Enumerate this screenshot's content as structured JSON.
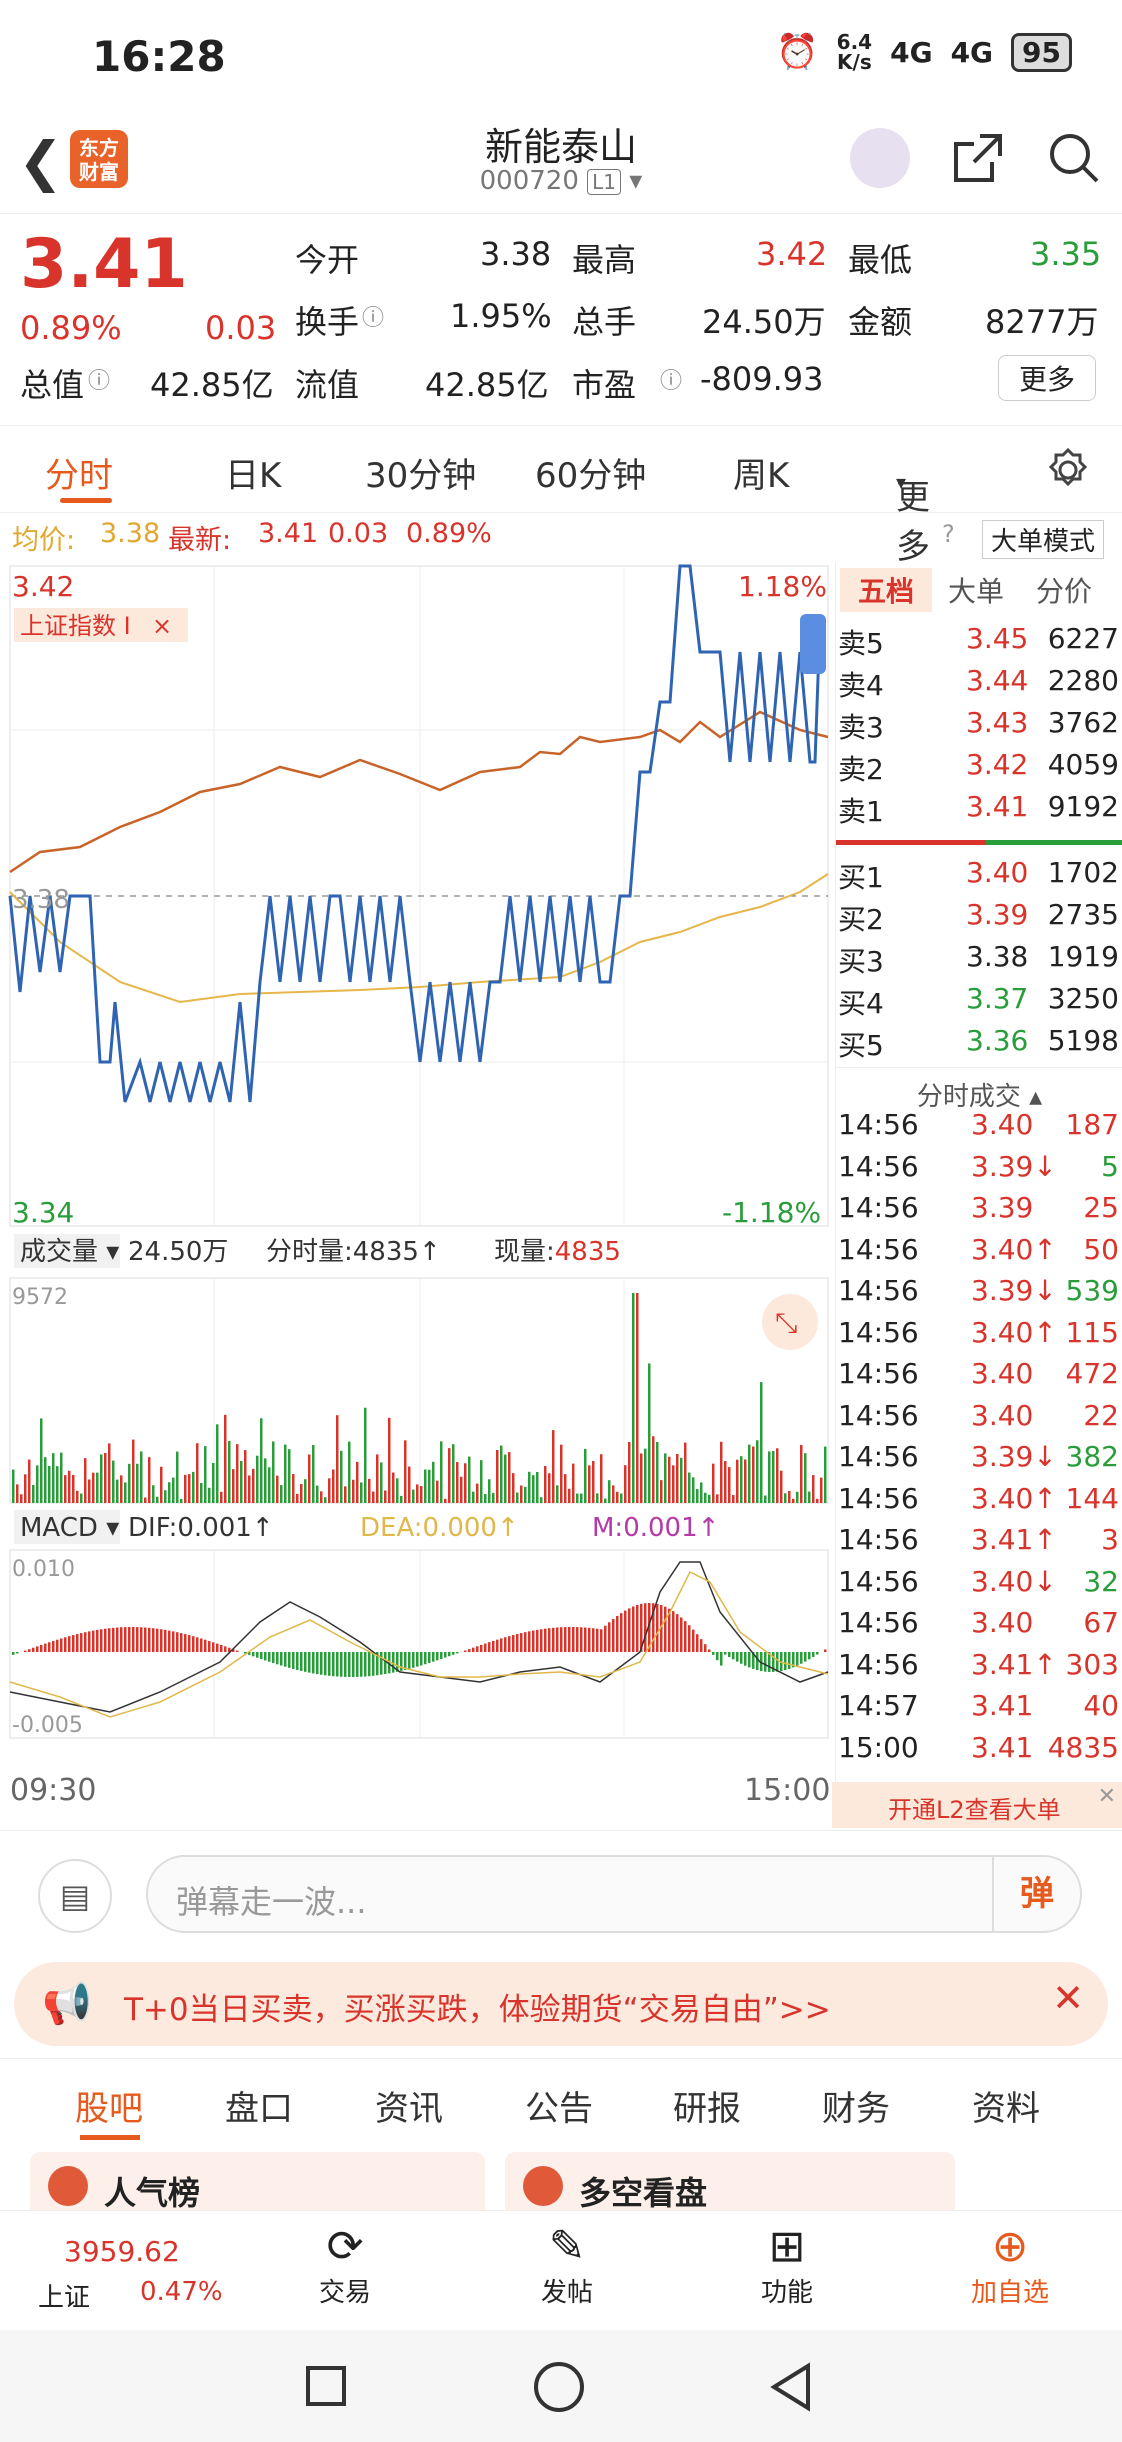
{
  "status": {
    "time": "16:28",
    "speed_top": "6.4",
    "speed_bot": "K/s",
    "net1": "4G",
    "net2": "4G",
    "battery": "95"
  },
  "header": {
    "name": "新能泰山",
    "code": "000720",
    "level": "L1"
  },
  "quote": {
    "price": "3.41",
    "pct": "0.89%",
    "chg": "0.03",
    "open_l": "今开",
    "open": "3.38",
    "high_l": "最高",
    "high": "3.42",
    "low_l": "最低",
    "low": "3.35",
    "turn_l": "换手",
    "turn": "1.95%",
    "vol_l": "总手",
    "vol": "24.50万",
    "amt_l": "金额",
    "amt": "8277万",
    "cap_l": "总值",
    "cap": "42.85亿",
    "float_l": "流值",
    "float": "42.85亿",
    "pe_l": "市盈",
    "pe": "-809.93",
    "more": "更多"
  },
  "tabs": [
    "分时",
    "日K",
    "30分钟",
    "60分钟",
    "周K",
    "更多"
  ],
  "avg": {
    "avg_l": "均价:",
    "avg": "3.38",
    "last_l": "最新:",
    "last": "3.41",
    "chg": "0.03",
    "pct": "0.89%",
    "mode": "大单模式"
  },
  "chart": {
    "y_top": "3.42",
    "y_mid": "3.38",
    "y_bot": "3.34",
    "pct_top": "1.18%",
    "pct_bot": "-1.18%",
    "index": "上证指数 I",
    "vol_label": "成交量",
    "vol_total": "24.50万",
    "tick_vol": "分时量:4835",
    "now_vol_l": "现量:",
    "now_vol": "4835",
    "vol_max": "9572",
    "macd": "MACD",
    "dif": "DIF:0.001",
    "dea": "DEA:0.000",
    "m": "M:0.001",
    "macd_top": "0.010",
    "macd_bot": "-0.005",
    "t_start": "09:30",
    "t_end": "15:00"
  },
  "orderbook": {
    "tabs": [
      "五档",
      "大单",
      "分价"
    ],
    "sell": [
      {
        "l": "卖5",
        "p": "3.45",
        "v": "6227"
      },
      {
        "l": "卖4",
        "p": "3.44",
        "v": "2280"
      },
      {
        "l": "卖3",
        "p": "3.43",
        "v": "3762"
      },
      {
        "l": "卖2",
        "p": "3.42",
        "v": "4059"
      },
      {
        "l": "卖1",
        "p": "3.41",
        "v": "9192"
      }
    ],
    "buy": [
      {
        "l": "买1",
        "p": "3.40",
        "v": "1702"
      },
      {
        "l": "买2",
        "p": "3.39",
        "v": "2735"
      },
      {
        "l": "买3",
        "p": "3.38",
        "v": "1919"
      },
      {
        "l": "买4",
        "p": "3.37",
        "v": "3250"
      },
      {
        "l": "买5",
        "p": "3.36",
        "v": "5198"
      }
    ],
    "trades_title": "分时成交",
    "trades": [
      {
        "t": "14:56",
        "p": "3.40",
        "v": "187"
      },
      {
        "t": "14:56",
        "p": "3.39↓",
        "v": "5"
      },
      {
        "t": "14:56",
        "p": "3.39",
        "v": "25"
      },
      {
        "t": "14:56",
        "p": "3.40↑",
        "v": "50"
      },
      {
        "t": "14:56",
        "p": "3.39↓",
        "v": "539"
      },
      {
        "t": "14:56",
        "p": "3.40↑",
        "v": "115"
      },
      {
        "t": "14:56",
        "p": "3.40",
        "v": "472"
      },
      {
        "t": "14:56",
        "p": "3.40",
        "v": "22"
      },
      {
        "t": "14:56",
        "p": "3.39↓",
        "v": "382"
      },
      {
        "t": "14:56",
        "p": "3.40↑",
        "v": "144"
      },
      {
        "t": "14:56",
        "p": "3.41↑",
        "v": "3"
      },
      {
        "t": "14:56",
        "p": "3.40↓",
        "v": "32"
      },
      {
        "t": "14:56",
        "p": "3.40",
        "v": "67"
      },
      {
        "t": "14:56",
        "p": "3.41↑",
        "v": "303"
      },
      {
        "t": "14:57",
        "p": "3.41",
        "v": "40"
      },
      {
        "t": "15:00",
        "p": "3.41",
        "v": "4835"
      }
    ],
    "l2": "开通L2查看大单"
  },
  "comment": {
    "placeholder": "弹幕走一波...",
    "btn": "弹"
  },
  "ad": {
    "text": "T+0当日买卖，买涨买跌，体验期货“交易自由”>>"
  },
  "navtabs": [
    "股吧",
    "盘口",
    "资讯",
    "公告",
    "研报",
    "财务",
    "资料"
  ],
  "cards": {
    "a": "人气榜",
    "b": "多空看盘"
  },
  "bottom": {
    "index_val": "3959.62",
    "index_name": "上证",
    "index_pct": "0.47%",
    "trade": "交易",
    "post": "发帖",
    "func": "功能",
    "fav": "加自选"
  }
}
